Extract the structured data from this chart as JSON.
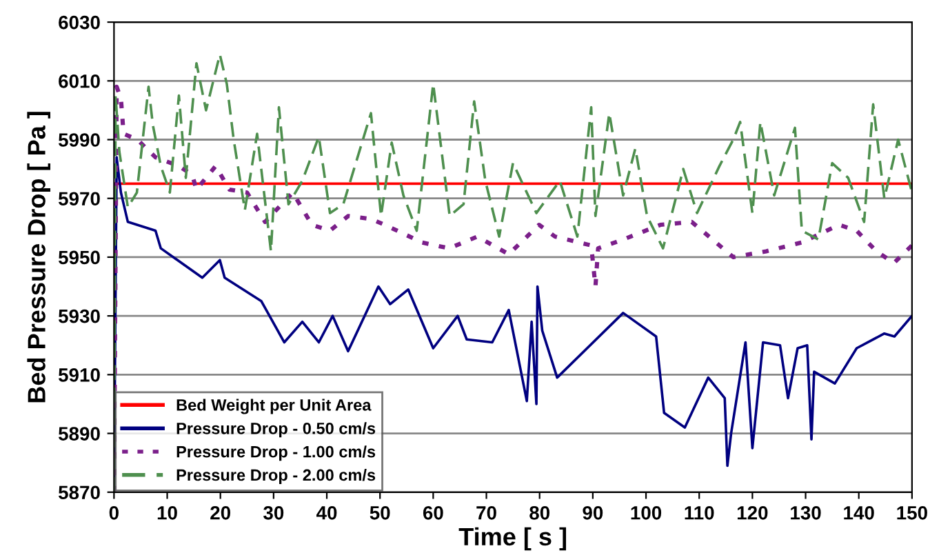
{
  "chart_data": {
    "type": "line",
    "xlabel": "Time [ s ]",
    "ylabel": "Bed Pressure Drop [ Pa ]",
    "xlim": [
      0,
      150
    ],
    "xticks": [
      0,
      10,
      20,
      30,
      40,
      50,
      60,
      70,
      80,
      90,
      100,
      110,
      120,
      130,
      140,
      150
    ],
    "ylim": [
      5870,
      6030
    ],
    "yticks": [
      5870,
      5890,
      5910,
      5930,
      5950,
      5970,
      5990,
      6010,
      6030
    ],
    "grid": "y",
    "legend": "bottom left",
    "series": [
      {
        "name": "Bed Weight per Unit Area",
        "color": "#ff0000",
        "line_style": "solid",
        "x": [
          0,
          150
        ],
        "values": [
          5975,
          5975
        ]
      },
      {
        "name": "Pressure Drop - 0.50 cm/s",
        "color": "#000080",
        "line_style": "solid",
        "x": [
          0,
          0.5,
          1.3,
          2.6,
          7.8,
          8.8,
          16.6,
          19.9,
          20.8,
          27.7,
          32,
          35.4,
          38.5,
          41.1,
          44,
          49.7,
          51.9,
          55.3,
          60,
          64.6,
          66.3,
          71.1,
          74.2,
          77.6,
          78.5,
          79.4,
          79.6,
          80.5,
          83.3,
          95.7,
          101.9,
          103.4,
          107.3,
          111.7,
          114.8,
          115.3,
          116,
          118.7,
          120,
          122,
          125.2,
          126.7,
          128.5,
          130.3,
          131.1,
          131.6,
          135.5,
          139.6,
          144.8,
          146.7,
          150
        ],
        "values": [
          5870,
          5984,
          5972,
          5962,
          5959,
          5953,
          5943,
          5949,
          5943,
          5935,
          5921,
          5928,
          5921,
          5930,
          5918,
          5940,
          5934,
          5939,
          5919,
          5930,
          5922,
          5921,
          5932,
          5901,
          5928,
          5900,
          5940,
          5925,
          5909,
          5931,
          5923,
          5897,
          5892,
          5909,
          5902,
          5879,
          5890,
          5921,
          5885,
          5921,
          5920,
          5902,
          5919,
          5920,
          5888,
          5911,
          5907,
          5919,
          5924,
          5923,
          5930
        ]
      },
      {
        "name": "Pressure Drop - 1.00 cm/s",
        "color": "#7b1f8a",
        "line_style": "dotted",
        "x": [
          0,
          0.5,
          1.3,
          1.8,
          4.4,
          7.8,
          12.2,
          14.7,
          15.5,
          19.1,
          21.7,
          25,
          28.4,
          33.6,
          37.2,
          40.6,
          44,
          48.3,
          50.9,
          57.9,
          63,
          68.3,
          74.2,
          79.9,
          82.9,
          89.7,
          90.5,
          91,
          95.7,
          102.7,
          108.6,
          116.4,
          122.6,
          129.3,
          136.3,
          139.6,
          143.3,
          146.6,
          150
        ],
        "values": [
          5870,
          6008,
          6004,
          5992,
          5990,
          5984,
          5981,
          5978,
          5973,
          5981,
          5973,
          5972,
          5962,
          5972,
          5961,
          5959,
          5964,
          5963,
          5961,
          5955,
          5953,
          5957,
          5951,
          5961,
          5957,
          5954,
          5940,
          5953,
          5956,
          5961,
          5962,
          5950,
          5952,
          5955,
          5961,
          5959,
          5952,
          5948,
          5954
        ]
      },
      {
        "name": "Pressure Drop - 2.00 cm/s",
        "color": "#4e8f4e",
        "line_style": "dashed",
        "x": [
          0,
          0.3,
          1,
          2.6,
          4.3,
          6.5,
          7.3,
          8.8,
          10.5,
          12.2,
          13.5,
          15.5,
          17.3,
          19.9,
          21.2,
          22.5,
          24.6,
          26.9,
          29.5,
          31,
          32.8,
          35.4,
          38.5,
          40.6,
          43.1,
          48.3,
          50.2,
          52.2,
          54.4,
          56.9,
          60,
          63.1,
          65.7,
          67.7,
          69.8,
          72.4,
          75,
          79.4,
          83.8,
          87.1,
          89.7,
          90.5,
          93.1,
          95.7,
          98,
          100.2,
          103.2,
          107,
          109.6,
          113.8,
          116.4,
          117.7,
          120,
          121.5,
          124.1,
          128,
          129.3,
          132.4,
          135,
          138,
          141,
          142.7,
          144.8,
          147.4,
          150
        ],
        "values": [
          5870,
          6005,
          5986,
          5967,
          5972,
          6008,
          5995,
          5981,
          5972,
          6005,
          5977,
          6016,
          6000,
          6019,
          6009,
          5990,
          5966,
          5992,
          5952,
          6001,
          5968,
          5976,
          5991,
          5965,
          5968,
          5999,
          5964,
          5989,
          5971,
          5959,
          6009,
          5964,
          5968,
          6003,
          5976,
          5957,
          5982,
          5965,
          5976,
          5957,
          6001,
          5964,
          5999,
          5971,
          5987,
          5964,
          5953,
          5980,
          5965,
          5981,
          5990,
          5996,
          5965,
          5996,
          5971,
          5994,
          5959,
          5956,
          5982,
          5977,
          5962,
          6002,
          5970,
          5990,
          5972
        ]
      }
    ]
  }
}
